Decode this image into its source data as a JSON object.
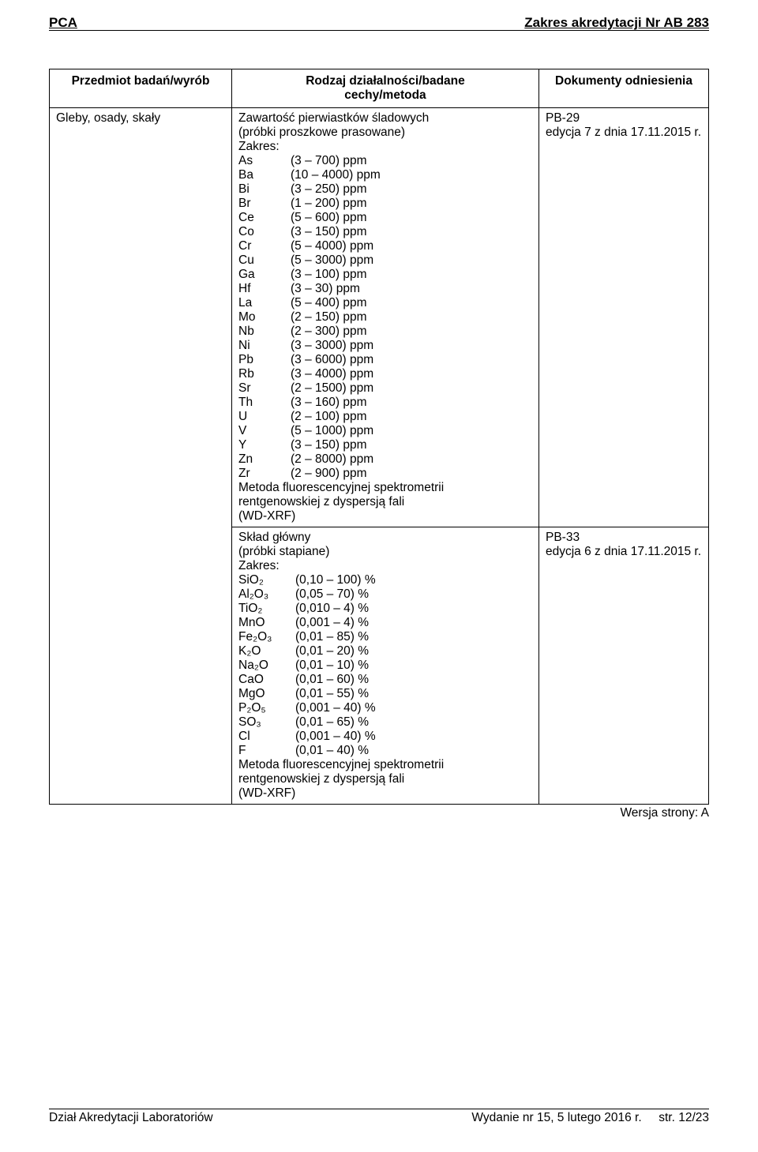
{
  "header": {
    "left": "PCA",
    "right": "Zakres akredytacji Nr AB 283"
  },
  "columns": {
    "c1": "Przedmiot badań/wyrób",
    "c2_l1": "Rodzaj działalności/badane",
    "c2_l2": "cechy/metoda",
    "c3": "Dokumenty odniesienia"
  },
  "row1_subject": "Gleby, osady, skały",
  "sectionA": {
    "intro_l1": "Zawartość pierwiastków śladowych",
    "intro_l2": "(próbki proszkowe prasowane)",
    "intro_l3": "Zakres:",
    "items": [
      {
        "k": "As",
        "v": "(3 – 700) ppm"
      },
      {
        "k": "Ba",
        "v": "(10 – 4000) ppm"
      },
      {
        "k": "Bi",
        "v": "(3 – 250) ppm"
      },
      {
        "k": "Br",
        "v": "(1 – 200) ppm"
      },
      {
        "k": "Ce",
        "v": "(5 – 600) ppm"
      },
      {
        "k": "Co",
        "v": "(3 – 150) ppm"
      },
      {
        "k": "Cr",
        "v": "(5 – 4000) ppm"
      },
      {
        "k": "Cu",
        "v": "(5 – 3000) ppm"
      },
      {
        "k": "Ga",
        "v": "(3 – 100) ppm"
      },
      {
        "k": "Hf",
        "v": "(3 – 30) ppm"
      },
      {
        "k": "La",
        "v": "(5 – 400) ppm"
      },
      {
        "k": "Mo",
        "v": "(2 – 150) ppm"
      },
      {
        "k": "Nb",
        "v": "(2 – 300) ppm"
      },
      {
        "k": "Ni",
        "v": "(3 – 3000) ppm"
      },
      {
        "k": "Pb",
        "v": "(3 – 6000) ppm"
      },
      {
        "k": "Rb",
        "v": "(3 – 4000) ppm"
      },
      {
        "k": "Sr",
        "v": "(2 – 1500) ppm"
      },
      {
        "k": "Th",
        "v": "(3 – 160) ppm"
      },
      {
        "k": "U",
        "v": "(2 – 100) ppm"
      },
      {
        "k": "V",
        "v": "(5 – 1000) ppm"
      },
      {
        "k": "Y",
        "v": "(3 – 150) ppm"
      },
      {
        "k": "Zn",
        "v": "(2 – 8000) ppm"
      },
      {
        "k": "Zr",
        "v": "(2 – 900) ppm"
      }
    ],
    "outro_l1": "Metoda fluorescencyjnej spektrometrii",
    "outro_l2": "rentgenowskiej z dyspersją fali",
    "outro_l3": "(WD-XRF)",
    "doc_l1": "PB-29",
    "doc_l2": "edycja 7 z dnia 17.11.2015 r."
  },
  "sectionB": {
    "intro_l1": "Skład główny",
    "intro_l2": "(próbki stapiane)",
    "intro_l3": "Zakres:",
    "items": [
      {
        "k": "SiO₂",
        "v": "(0,10 – 100) %"
      },
      {
        "k": "Al₂O₃",
        "v": "(0,05 – 70) %"
      },
      {
        "k": "TiO₂",
        "v": "(0,010 – 4) %"
      },
      {
        "k": "MnO",
        "v": "(0,001 – 4) %"
      },
      {
        "k": "Fe₂O₃",
        "v": "(0,01 – 85) %"
      },
      {
        "k": "K₂O",
        "v": "(0,01 – 20) %"
      },
      {
        "k": "Na₂O",
        "v": "(0,01 – 10) %"
      },
      {
        "k": "CaO",
        "v": "(0,01 – 60) %"
      },
      {
        "k": "MgO",
        "v": "(0,01 – 55) %"
      },
      {
        "k": "P₂O₅",
        "v": "(0,001 – 40) %"
      },
      {
        "k": "SO₃",
        "v": "(0,01 – 65) %"
      },
      {
        "k": "Cl",
        "v": "(0,001 – 40) %"
      },
      {
        "k": "F",
        "v": "(0,01 – 40) %"
      }
    ],
    "outro_l1": "Metoda fluorescencyjnej spektrometrii",
    "outro_l2": "rentgenowskiej z dyspersją fali",
    "outro_l3": "(WD-XRF)",
    "doc_l1": "PB-33",
    "doc_l2": "edycja 6 z dnia 17.11.2015 r."
  },
  "version": "Wersja strony: A",
  "footer": {
    "left": "Dział Akredytacji Laboratoriów",
    "mid": "Wydanie nr 15, 5 lutego 2016 r.",
    "right": "str. 12/23"
  }
}
